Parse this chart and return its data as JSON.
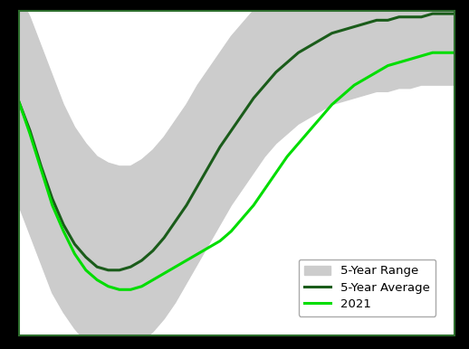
{
  "n_points": 40,
  "avg_line": [
    0.72,
    0.63,
    0.52,
    0.42,
    0.34,
    0.28,
    0.24,
    0.21,
    0.2,
    0.2,
    0.21,
    0.23,
    0.26,
    0.3,
    0.35,
    0.4,
    0.46,
    0.52,
    0.58,
    0.63,
    0.68,
    0.73,
    0.77,
    0.81,
    0.84,
    0.87,
    0.89,
    0.91,
    0.93,
    0.94,
    0.95,
    0.96,
    0.97,
    0.97,
    0.98,
    0.98,
    0.98,
    0.99,
    0.99,
    0.99
  ],
  "upper_band": [
    1.05,
    0.98,
    0.89,
    0.8,
    0.71,
    0.64,
    0.59,
    0.55,
    0.53,
    0.52,
    0.52,
    0.54,
    0.57,
    0.61,
    0.66,
    0.71,
    0.77,
    0.82,
    0.87,
    0.92,
    0.96,
    1.0,
    1.03,
    1.06,
    1.09,
    1.11,
    1.13,
    1.14,
    1.15,
    1.16,
    1.17,
    1.17,
    1.18,
    1.18,
    1.18,
    1.19,
    1.19,
    1.19,
    1.19,
    1.19
  ],
  "lower_band": [
    0.4,
    0.31,
    0.22,
    0.13,
    0.07,
    0.02,
    -0.02,
    -0.04,
    -0.05,
    -0.05,
    -0.04,
    -0.02,
    0.01,
    0.05,
    0.1,
    0.16,
    0.22,
    0.28,
    0.34,
    0.4,
    0.45,
    0.5,
    0.55,
    0.59,
    0.62,
    0.65,
    0.67,
    0.69,
    0.71,
    0.72,
    0.73,
    0.74,
    0.75,
    0.75,
    0.76,
    0.76,
    0.77,
    0.77,
    0.77,
    0.77
  ],
  "line_2021": [
    0.72,
    0.62,
    0.51,
    0.4,
    0.32,
    0.25,
    0.2,
    0.17,
    0.15,
    0.14,
    0.14,
    0.15,
    0.17,
    0.19,
    0.21,
    0.23,
    0.25,
    0.27,
    0.29,
    0.32,
    0.36,
    0.4,
    0.45,
    0.5,
    0.55,
    0.59,
    0.63,
    0.67,
    0.71,
    0.74,
    0.77,
    0.79,
    0.81,
    0.83,
    0.84,
    0.85,
    0.86,
    0.87,
    0.87,
    0.87
  ],
  "avg_color": "#1a5c1a",
  "line_2021_color": "#00dd00",
  "band_color": "#cccccc",
  "band_alpha": 1.0,
  "avg_linewidth": 2.2,
  "line_2021_linewidth": 2.2,
  "legend_labels": [
    "5-Year Range",
    "5-Year Average",
    "2021"
  ],
  "plot_bg": "#ffffff",
  "fig_bg": "#000000",
  "border_color": "#2d6e2d",
  "ylim_min": 0.0,
  "ylim_max": 1.0,
  "legend_fontsize": 9.5
}
